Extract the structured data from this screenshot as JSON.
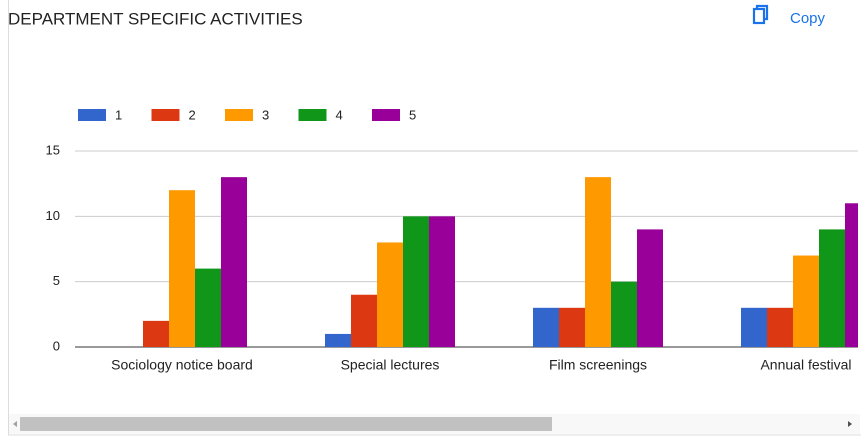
{
  "chart_data": {
    "type": "bar",
    "title": "DEPARTMENT SPECIFIC ACTIVITIES",
    "categories": [
      "Sociology notice board",
      "Special lectures",
      "Film screenings",
      "Annual festival"
    ],
    "series": [
      {
        "name": "1",
        "color": "#3366cc",
        "values": [
          0,
          1,
          3,
          3
        ]
      },
      {
        "name": "2",
        "color": "#dc3912",
        "values": [
          2,
          4,
          3,
          3
        ]
      },
      {
        "name": "3",
        "color": "#ff9900",
        "values": [
          12,
          8,
          13,
          7
        ]
      },
      {
        "name": "4",
        "color": "#109618",
        "values": [
          6,
          10,
          5,
          9
        ]
      },
      {
        "name": "5",
        "color": "#990099",
        "values": [
          13,
          10,
          9,
          11
        ]
      }
    ],
    "ylim": [
      0,
      15
    ],
    "yticks": [
      0,
      5,
      10,
      15
    ],
    "grid": true,
    "legend": "top"
  },
  "copy_button": "Copy"
}
